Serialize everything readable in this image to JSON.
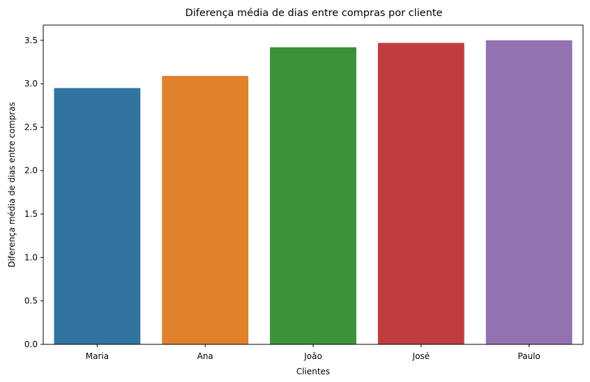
{
  "chart_data": {
    "type": "bar",
    "title": "Diferença média de dias entre compras por cliente",
    "xlabel": "Clientes",
    "ylabel": "Diferença média de dias entre compras",
    "categories": [
      "Maria",
      "Ana",
      "João",
      "José",
      "Paulo"
    ],
    "values": [
      2.95,
      3.09,
      3.42,
      3.47,
      3.5
    ],
    "colors": [
      "#3274a1",
      "#e1812c",
      "#3a923a",
      "#c03d3e",
      "#9372b2"
    ],
    "ylim": [
      0,
      3.675
    ],
    "yticks": [
      0.0,
      0.5,
      1.0,
      1.5,
      2.0,
      2.5,
      3.0,
      3.5
    ],
    "ytick_labels": [
      "0.0",
      "0.5",
      "1.0",
      "1.5",
      "2.0",
      "2.5",
      "3.0",
      "3.5"
    ],
    "grid": false,
    "legend": "none"
  }
}
